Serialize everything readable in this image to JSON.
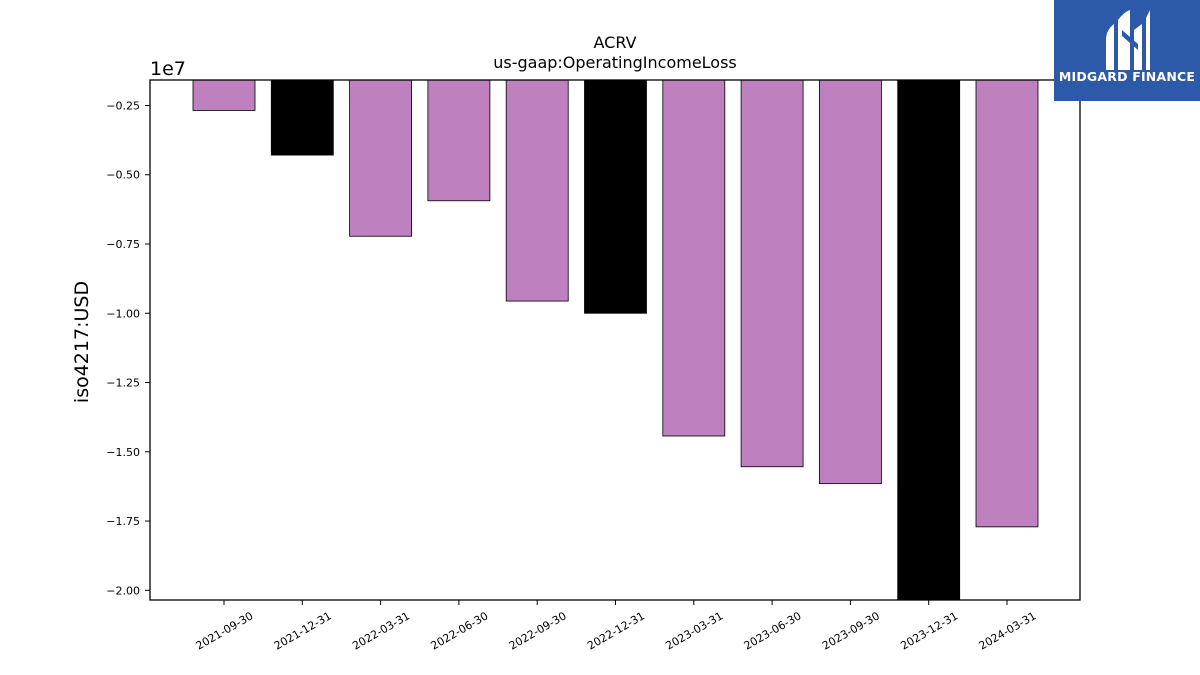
{
  "chart_data": {
    "type": "bar",
    "title": "ACRV",
    "subtitle": "us-gaap:OperatingIncomeLoss",
    "xlabel": "",
    "ylabel": "iso4217:USD",
    "offset_text": "1e7",
    "categories": [
      "2021-09-30",
      "2021-12-31",
      "2022-03-31",
      "2022-06-30",
      "2022-09-30",
      "2022-12-31",
      "2023-03-31",
      "2023-06-30",
      "2023-09-30",
      "2023-12-31",
      "2024-03-31"
    ],
    "values": [
      -2680000,
      -4290000,
      -7220000,
      -5940000,
      -9560000,
      -10000000,
      -14430000,
      -15540000,
      -16150000,
      -20350000,
      -17710000
    ],
    "bar_colors": [
      "#bf80bf",
      "#000000",
      "#bf80bf",
      "#bf80bf",
      "#bf80bf",
      "#000000",
      "#bf80bf",
      "#bf80bf",
      "#bf80bf",
      "#000000",
      "#bf80bf"
    ],
    "ylim": [
      -20350000,
      -1580000
    ],
    "yticks": [
      -2500000,
      -5000000,
      -7500000,
      -10000000,
      -12500000,
      -15000000,
      -17500000,
      -20000000
    ],
    "ytick_labels": [
      "−0.25",
      "−0.50",
      "−0.75",
      "−1.00",
      "−1.25",
      "−1.50",
      "−1.75",
      "−2.00"
    ],
    "grid": false,
    "legend": "none"
  },
  "logo": {
    "text": "MIDGARD FINANCE",
    "color": "#2c5aa8"
  }
}
